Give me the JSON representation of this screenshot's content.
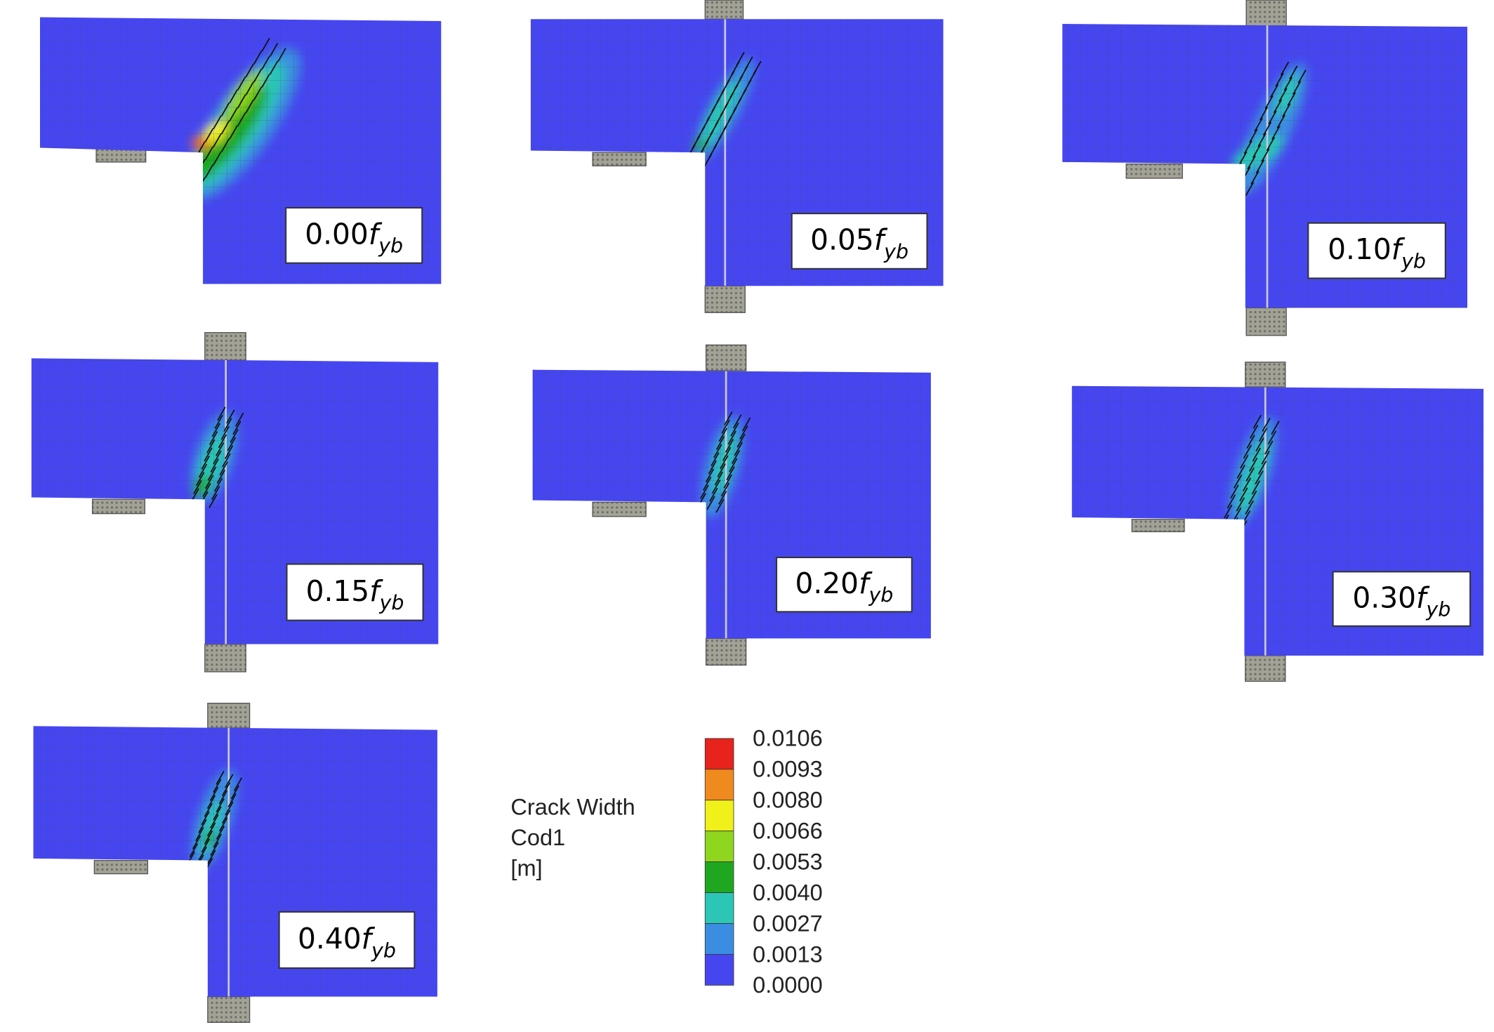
{
  "panels": [
    {
      "label": {
        "value": "0.00",
        "symbol": "f",
        "subscript": "yb"
      }
    },
    {
      "label": {
        "value": "0.05",
        "symbol": "f",
        "subscript": "yb"
      }
    },
    {
      "label": {
        "value": "0.10",
        "symbol": "f",
        "subscript": "yb"
      }
    },
    {
      "label": {
        "value": "0.15",
        "symbol": "f",
        "subscript": "yb"
      }
    },
    {
      "label": {
        "value": "0.20",
        "symbol": "f",
        "subscript": "yb"
      }
    },
    {
      "label": {
        "value": "0.30",
        "symbol": "f",
        "subscript": "yb"
      }
    },
    {
      "label": {
        "value": "0.40",
        "symbol": "f",
        "subscript": "yb"
      }
    }
  ],
  "legend": {
    "title": [
      "Crack Width",
      "Cod1",
      "[m]"
    ],
    "values": [
      "0.0106",
      "0.0093",
      "0.0080",
      "0.0066",
      "0.0053",
      "0.0040",
      "0.0027",
      "0.0013",
      "0.0000"
    ]
  }
}
